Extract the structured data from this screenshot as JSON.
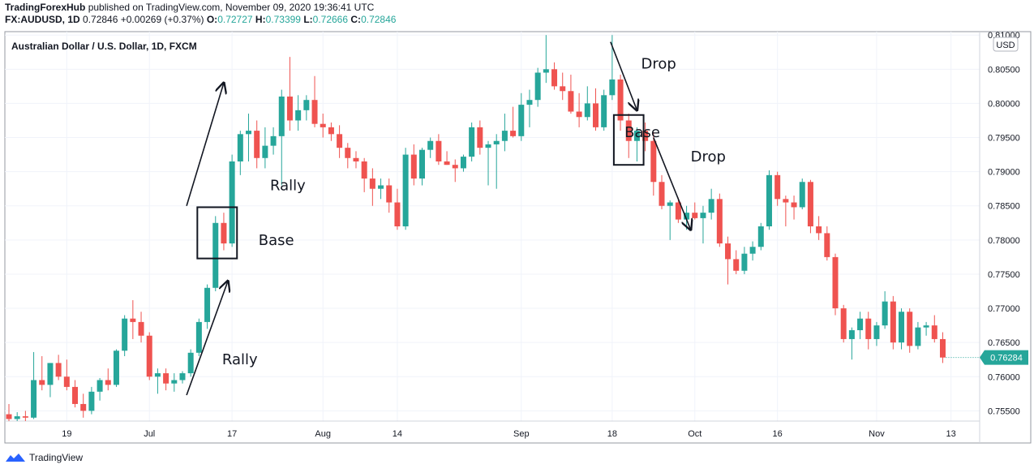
{
  "header": {
    "publisher": "TradingForexHub",
    "published_text": "published on TradingView.com, November 09, 2020 19:36:41 UTC",
    "symbol": "FX:AUDUSD, 1D",
    "last": "0.72846",
    "change": "+0.00269 (+0.37%)",
    "o_label": "O:",
    "o_value": "0.72727",
    "h_label": "H:",
    "h_value": "0.73399",
    "l_label": "L:",
    "l_value": "0.72666",
    "c_label": "C:",
    "c_value": "0.72846"
  },
  "footer": {
    "brand": "TradingView"
  },
  "colors": {
    "up": "#26a69a",
    "down": "#ef5350",
    "axis": "#787b86",
    "annotation": "#131722"
  },
  "chart_data": {
    "type": "candlestick",
    "title": "Australian Dollar / U.S. Dollar, 1D, FXCM",
    "currency_label": "USD",
    "last_price_label": "0.76284",
    "ylim": [
      0.7535,
      0.8105
    ],
    "y_ticks": [
      "0.75500",
      "0.76000",
      "0.76500",
      "0.77000",
      "0.77500",
      "0.78000",
      "0.78500",
      "0.79000",
      "0.79500",
      "0.80000",
      "0.80500",
      "0.81000"
    ],
    "x_ticks": [
      {
        "label": "19",
        "index": 7
      },
      {
        "label": "Jul",
        "index": 17
      },
      {
        "label": "17",
        "index": 27
      },
      {
        "label": "Aug",
        "index": 38
      },
      {
        "label": "14",
        "index": 47
      },
      {
        "label": "Sep",
        "index": 62
      },
      {
        "label": "18",
        "index": 73
      },
      {
        "label": "Oct",
        "index": 83
      },
      {
        "label": "16",
        "index": 93
      },
      {
        "label": "Nov",
        "index": 105
      },
      {
        "label": "13",
        "index": 114
      }
    ],
    "candles": [
      {
        "o": 0.7545,
        "h": 0.756,
        "l": 0.7535,
        "c": 0.7538
      },
      {
        "o": 0.7538,
        "h": 0.7548,
        "l": 0.7535,
        "c": 0.7542
      },
      {
        "o": 0.7542,
        "h": 0.755,
        "l": 0.7535,
        "c": 0.754
      },
      {
        "o": 0.754,
        "h": 0.7636,
        "l": 0.7538,
        "c": 0.7595
      },
      {
        "o": 0.7595,
        "h": 0.763,
        "l": 0.758,
        "c": 0.7588
      },
      {
        "o": 0.7588,
        "h": 0.762,
        "l": 0.757,
        "c": 0.762
      },
      {
        "o": 0.762,
        "h": 0.7632,
        "l": 0.7595,
        "c": 0.76
      },
      {
        "o": 0.76,
        "h": 0.7625,
        "l": 0.758,
        "c": 0.7585
      },
      {
        "o": 0.7585,
        "h": 0.7595,
        "l": 0.7555,
        "c": 0.756
      },
      {
        "o": 0.756,
        "h": 0.7575,
        "l": 0.754,
        "c": 0.755
      },
      {
        "o": 0.755,
        "h": 0.7585,
        "l": 0.7545,
        "c": 0.7578
      },
      {
        "o": 0.7578,
        "h": 0.7598,
        "l": 0.7565,
        "c": 0.7595
      },
      {
        "o": 0.7595,
        "h": 0.7612,
        "l": 0.758,
        "c": 0.7588
      },
      {
        "o": 0.7588,
        "h": 0.764,
        "l": 0.7585,
        "c": 0.7638
      },
      {
        "o": 0.7638,
        "h": 0.769,
        "l": 0.763,
        "c": 0.7685
      },
      {
        "o": 0.7685,
        "h": 0.7712,
        "l": 0.7655,
        "c": 0.768
      },
      {
        "o": 0.768,
        "h": 0.7695,
        "l": 0.765,
        "c": 0.766
      },
      {
        "o": 0.766,
        "h": 0.7665,
        "l": 0.7595,
        "c": 0.76
      },
      {
        "o": 0.76,
        "h": 0.7612,
        "l": 0.7575,
        "c": 0.7605
      },
      {
        "o": 0.7605,
        "h": 0.7612,
        "l": 0.758,
        "c": 0.759
      },
      {
        "o": 0.759,
        "h": 0.7605,
        "l": 0.7578,
        "c": 0.7595
      },
      {
        "o": 0.7595,
        "h": 0.7608,
        "l": 0.759,
        "c": 0.7605
      },
      {
        "o": 0.7605,
        "h": 0.764,
        "l": 0.76,
        "c": 0.7635
      },
      {
        "o": 0.7635,
        "h": 0.7685,
        "l": 0.763,
        "c": 0.768
      },
      {
        "o": 0.768,
        "h": 0.7735,
        "l": 0.767,
        "c": 0.773
      },
      {
        "o": 0.773,
        "h": 0.7835,
        "l": 0.7725,
        "c": 0.7825
      },
      {
        "o": 0.7825,
        "h": 0.784,
        "l": 0.7785,
        "c": 0.7795
      },
      {
        "o": 0.7795,
        "h": 0.7925,
        "l": 0.779,
        "c": 0.7915
      },
      {
        "o": 0.7915,
        "h": 0.796,
        "l": 0.7895,
        "c": 0.7955
      },
      {
        "o": 0.7955,
        "h": 0.7985,
        "l": 0.7915,
        "c": 0.796
      },
      {
        "o": 0.796,
        "h": 0.7975,
        "l": 0.7905,
        "c": 0.792
      },
      {
        "o": 0.792,
        "h": 0.7965,
        "l": 0.7905,
        "c": 0.7938
      },
      {
        "o": 0.7938,
        "h": 0.7965,
        "l": 0.7925,
        "c": 0.7952
      },
      {
        "o": 0.7952,
        "h": 0.802,
        "l": 0.788,
        "c": 0.801
      },
      {
        "o": 0.801,
        "h": 0.8068,
        "l": 0.796,
        "c": 0.7975
      },
      {
        "o": 0.7975,
        "h": 0.8012,
        "l": 0.796,
        "c": 0.799
      },
      {
        "o": 0.799,
        "h": 0.8012,
        "l": 0.7975,
        "c": 0.8005
      },
      {
        "o": 0.8005,
        "h": 0.804,
        "l": 0.7965,
        "c": 0.797
      },
      {
        "o": 0.797,
        "h": 0.7985,
        "l": 0.795,
        "c": 0.7965
      },
      {
        "o": 0.7965,
        "h": 0.7972,
        "l": 0.7945,
        "c": 0.7955
      },
      {
        "o": 0.7955,
        "h": 0.7968,
        "l": 0.792,
        "c": 0.7935
      },
      {
        "o": 0.7935,
        "h": 0.7942,
        "l": 0.7905,
        "c": 0.792
      },
      {
        "o": 0.792,
        "h": 0.793,
        "l": 0.7905,
        "c": 0.7915
      },
      {
        "o": 0.7915,
        "h": 0.792,
        "l": 0.787,
        "c": 0.789
      },
      {
        "o": 0.789,
        "h": 0.7905,
        "l": 0.785,
        "c": 0.7875
      },
      {
        "o": 0.7875,
        "h": 0.789,
        "l": 0.786,
        "c": 0.788
      },
      {
        "o": 0.788,
        "h": 0.789,
        "l": 0.784,
        "c": 0.7855
      },
      {
        "o": 0.7855,
        "h": 0.7875,
        "l": 0.7815,
        "c": 0.782
      },
      {
        "o": 0.782,
        "h": 0.7935,
        "l": 0.7815,
        "c": 0.7925
      },
      {
        "o": 0.7925,
        "h": 0.794,
        "l": 0.788,
        "c": 0.789
      },
      {
        "o": 0.789,
        "h": 0.7935,
        "l": 0.788,
        "c": 0.7932
      },
      {
        "o": 0.7932,
        "h": 0.795,
        "l": 0.792,
        "c": 0.7945
      },
      {
        "o": 0.7945,
        "h": 0.7955,
        "l": 0.791,
        "c": 0.7915
      },
      {
        "o": 0.7915,
        "h": 0.793,
        "l": 0.791,
        "c": 0.791
      },
      {
        "o": 0.791,
        "h": 0.7918,
        "l": 0.7885,
        "c": 0.7905
      },
      {
        "o": 0.7905,
        "h": 0.7925,
        "l": 0.79,
        "c": 0.7922
      },
      {
        "o": 0.7922,
        "h": 0.7972,
        "l": 0.7915,
        "c": 0.7965
      },
      {
        "o": 0.7965,
        "h": 0.7975,
        "l": 0.7925,
        "c": 0.7935
      },
      {
        "o": 0.7935,
        "h": 0.7945,
        "l": 0.788,
        "c": 0.794
      },
      {
        "o": 0.794,
        "h": 0.7955,
        "l": 0.7875,
        "c": 0.7945
      },
      {
        "o": 0.7945,
        "h": 0.7985,
        "l": 0.793,
        "c": 0.796
      },
      {
        "o": 0.796,
        "h": 0.7995,
        "l": 0.795,
        "c": 0.7952
      },
      {
        "o": 0.7952,
        "h": 0.8015,
        "l": 0.7945,
        "c": 0.7998
      },
      {
        "o": 0.7998,
        "h": 0.802,
        "l": 0.7965,
        "c": 0.8005
      },
      {
        "o": 0.8005,
        "h": 0.8052,
        "l": 0.7995,
        "c": 0.8045
      },
      {
        "o": 0.8045,
        "h": 0.81,
        "l": 0.803,
        "c": 0.805
      },
      {
        "o": 0.805,
        "h": 0.806,
        "l": 0.802,
        "c": 0.8025
      },
      {
        "o": 0.8025,
        "h": 0.8045,
        "l": 0.8005,
        "c": 0.8018
      },
      {
        "o": 0.8018,
        "h": 0.8042,
        "l": 0.7985,
        "c": 0.7988
      },
      {
        "o": 0.7988,
        "h": 0.8015,
        "l": 0.7965,
        "c": 0.798
      },
      {
        "o": 0.798,
        "h": 0.8025,
        "l": 0.7975,
        "c": 0.8
      },
      {
        "o": 0.8,
        "h": 0.8022,
        "l": 0.796,
        "c": 0.7965
      },
      {
        "o": 0.7965,
        "h": 0.802,
        "l": 0.796,
        "c": 0.8012
      },
      {
        "o": 0.8012,
        "h": 0.81,
        "l": 0.8005,
        "c": 0.8035
      },
      {
        "o": 0.8035,
        "h": 0.8042,
        "l": 0.796,
        "c": 0.7975
      },
      {
        "o": 0.7975,
        "h": 0.7985,
        "l": 0.792,
        "c": 0.7945
      },
      {
        "o": 0.7945,
        "h": 0.7965,
        "l": 0.7915,
        "c": 0.796
      },
      {
        "o": 0.796,
        "h": 0.7972,
        "l": 0.793,
        "c": 0.7945
      },
      {
        "o": 0.7945,
        "h": 0.7958,
        "l": 0.7865,
        "c": 0.7885
      },
      {
        "o": 0.7885,
        "h": 0.7895,
        "l": 0.7845,
        "c": 0.785
      },
      {
        "o": 0.785,
        "h": 0.7858,
        "l": 0.78,
        "c": 0.7855
      },
      {
        "o": 0.7855,
        "h": 0.7862,
        "l": 0.7825,
        "c": 0.783
      },
      {
        "o": 0.783,
        "h": 0.785,
        "l": 0.7815,
        "c": 0.784
      },
      {
        "o": 0.784,
        "h": 0.7855,
        "l": 0.783,
        "c": 0.7832
      },
      {
        "o": 0.7832,
        "h": 0.785,
        "l": 0.7795,
        "c": 0.784
      },
      {
        "o": 0.784,
        "h": 0.7875,
        "l": 0.783,
        "c": 0.786
      },
      {
        "o": 0.786,
        "h": 0.7868,
        "l": 0.779,
        "c": 0.7795
      },
      {
        "o": 0.7795,
        "h": 0.7805,
        "l": 0.7735,
        "c": 0.7772
      },
      {
        "o": 0.7772,
        "h": 0.7785,
        "l": 0.775,
        "c": 0.7755
      },
      {
        "o": 0.7755,
        "h": 0.779,
        "l": 0.775,
        "c": 0.778
      },
      {
        "o": 0.778,
        "h": 0.7798,
        "l": 0.777,
        "c": 0.779
      },
      {
        "o": 0.779,
        "h": 0.7825,
        "l": 0.7785,
        "c": 0.782
      },
      {
        "o": 0.782,
        "h": 0.7902,
        "l": 0.7815,
        "c": 0.7895
      },
      {
        "o": 0.7895,
        "h": 0.79,
        "l": 0.785,
        "c": 0.786
      },
      {
        "o": 0.786,
        "h": 0.7865,
        "l": 0.782,
        "c": 0.7855
      },
      {
        "o": 0.7855,
        "h": 0.7865,
        "l": 0.783,
        "c": 0.7848
      },
      {
        "o": 0.7848,
        "h": 0.789,
        "l": 0.7845,
        "c": 0.7885
      },
      {
        "o": 0.7885,
        "h": 0.7888,
        "l": 0.781,
        "c": 0.782
      },
      {
        "o": 0.782,
        "h": 0.7835,
        "l": 0.78,
        "c": 0.781
      },
      {
        "o": 0.781,
        "h": 0.782,
        "l": 0.777,
        "c": 0.7775
      },
      {
        "o": 0.7775,
        "h": 0.778,
        "l": 0.769,
        "c": 0.77
      },
      {
        "o": 0.77,
        "h": 0.7705,
        "l": 0.765,
        "c": 0.7655
      },
      {
        "o": 0.7655,
        "h": 0.7672,
        "l": 0.7625,
        "c": 0.7668
      },
      {
        "o": 0.7668,
        "h": 0.7695,
        "l": 0.7655,
        "c": 0.7685
      },
      {
        "o": 0.7685,
        "h": 0.7695,
        "l": 0.764,
        "c": 0.7655
      },
      {
        "o": 0.7655,
        "h": 0.768,
        "l": 0.7645,
        "c": 0.7675
      },
      {
        "o": 0.7675,
        "h": 0.7725,
        "l": 0.767,
        "c": 0.771
      },
      {
        "o": 0.771,
        "h": 0.7718,
        "l": 0.764,
        "c": 0.765
      },
      {
        "o": 0.765,
        "h": 0.77,
        "l": 0.764,
        "c": 0.7695
      },
      {
        "o": 0.7695,
        "h": 0.77,
        "l": 0.7635,
        "c": 0.7645
      },
      {
        "o": 0.7645,
        "h": 0.768,
        "l": 0.764,
        "c": 0.7672
      },
      {
        "o": 0.7672,
        "h": 0.768,
        "l": 0.766,
        "c": 0.7675
      },
      {
        "o": 0.7675,
        "h": 0.769,
        "l": 0.765,
        "c": 0.7655
      },
      {
        "o": 0.7655,
        "h": 0.7665,
        "l": 0.762,
        "c": 0.7628
      }
    ],
    "annotations": [
      {
        "text": "Rally",
        "x_index": 25.8,
        "y": 0.7625
      },
      {
        "text": "Base",
        "x_index": 30.2,
        "y": 0.78
      },
      {
        "text": "Rally",
        "x_index": 31.6,
        "y": 0.788
      },
      {
        "text": "Drop",
        "x_index": 76.5,
        "y": 0.8058
      },
      {
        "text": "Base",
        "x_index": 74.5,
        "y": 0.7958
      },
      {
        "text": "Drop",
        "x_index": 82.5,
        "y": 0.7922
      }
    ],
    "boxes": [
      {
        "i0": 22.8,
        "i1": 27.6,
        "y0": 0.7773,
        "y1": 0.7848
      },
      {
        "i0": 73.2,
        "i1": 76.8,
        "y0": 0.791,
        "y1": 0.7983
      }
    ],
    "arrows": [
      {
        "i0": 21.5,
        "y0": 0.7573,
        "i1": 26.5,
        "y1": 0.774
      },
      {
        "i0": 21.5,
        "y0": 0.785,
        "i1": 26.0,
        "y1": 0.803
      },
      {
        "i0": 72.8,
        "y0": 0.809,
        "i1": 76.0,
        "y1": 0.799
      },
      {
        "i0": 78.0,
        "y0": 0.795,
        "i1": 82.5,
        "y1": 0.7815
      }
    ]
  }
}
